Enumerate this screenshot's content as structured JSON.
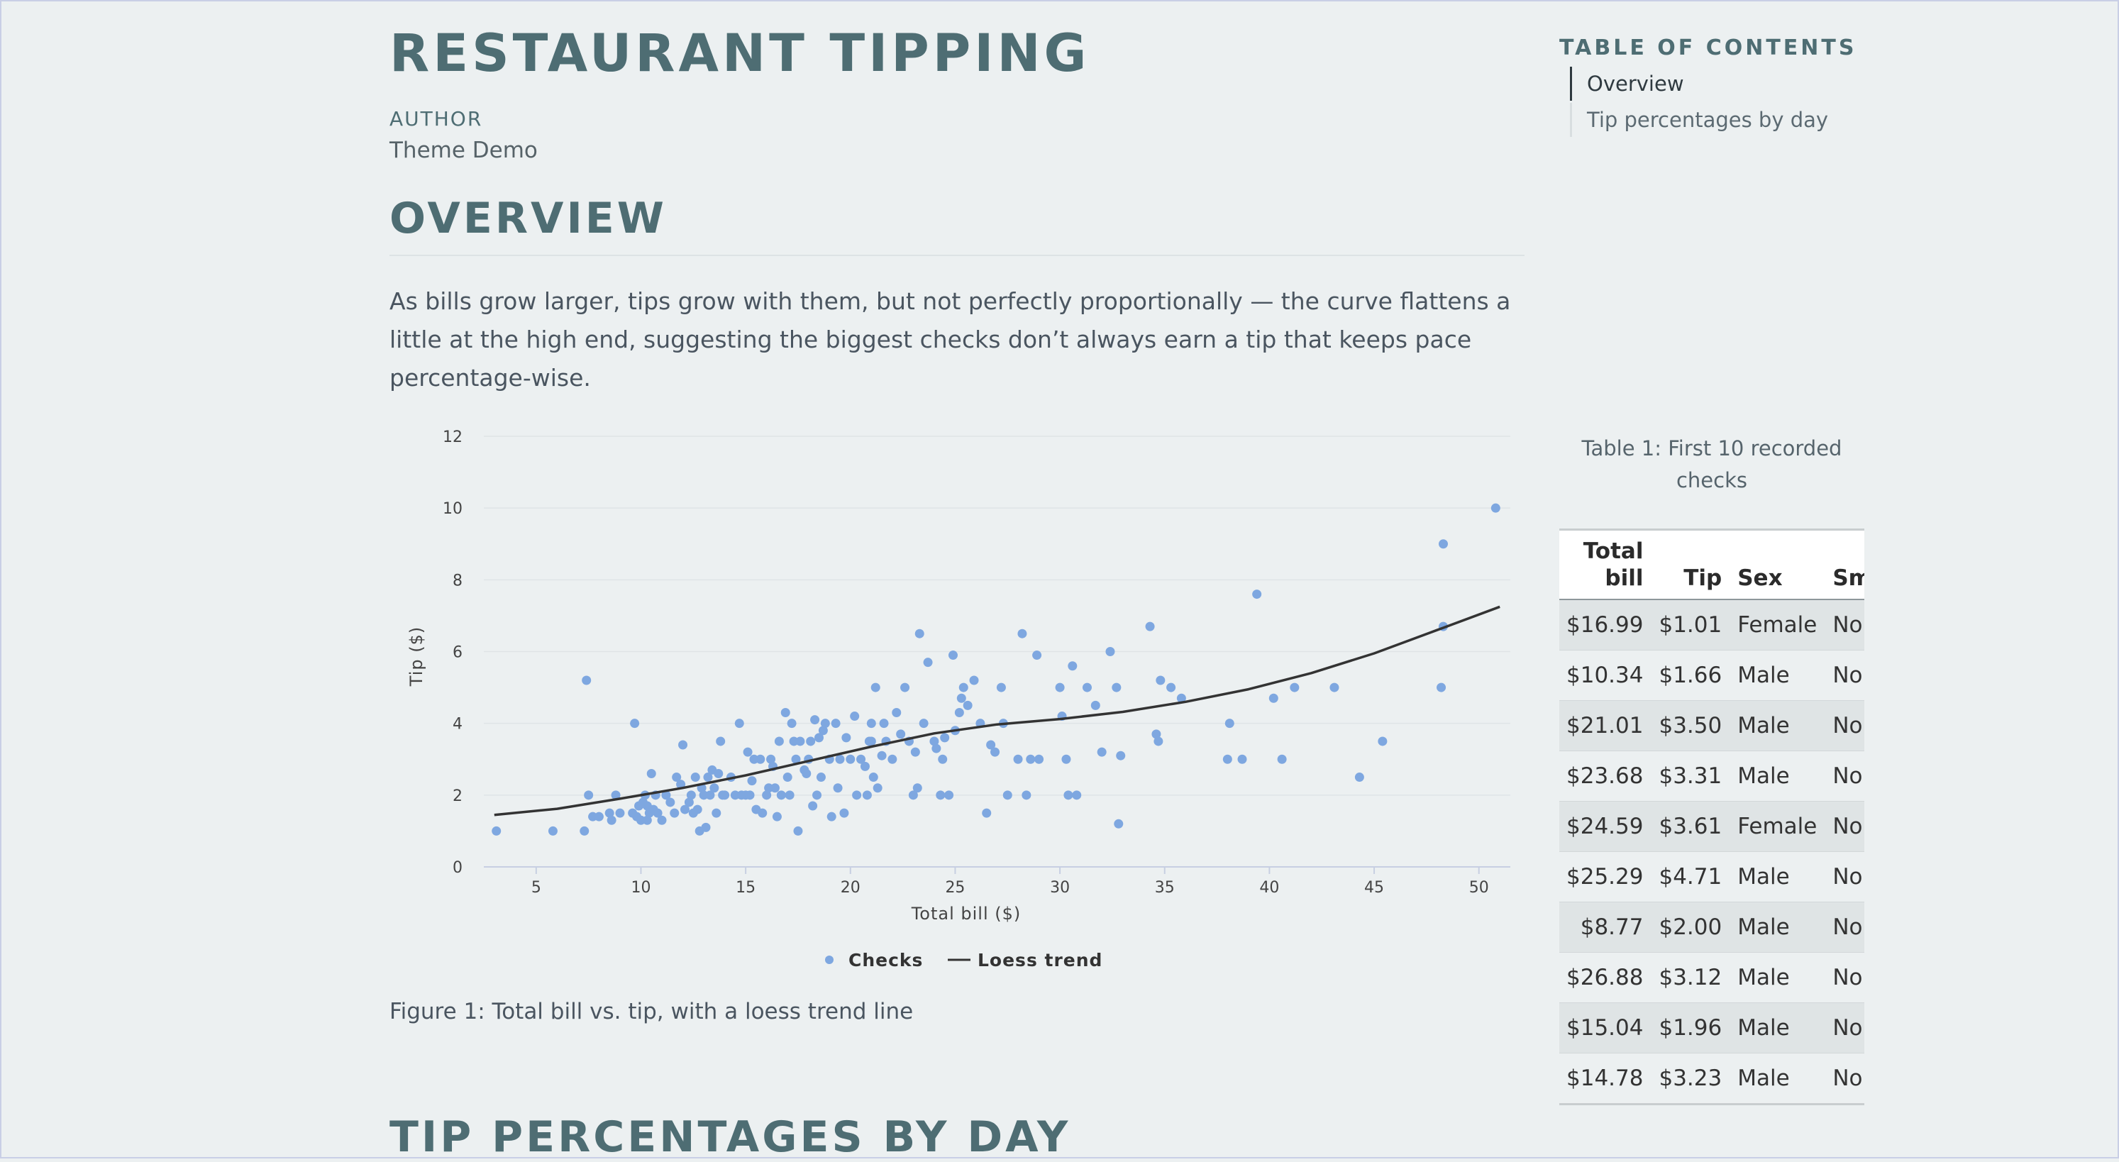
{
  "doc": {
    "title": "RESTAURANT TIPPING",
    "author_label": "AUTHOR",
    "author_name": "Theme Demo"
  },
  "toc": {
    "title": "TABLE OF CONTENTS",
    "items": [
      {
        "label": "Overview",
        "active": true
      },
      {
        "label": "Tip percentages by day",
        "active": false
      }
    ]
  },
  "sections": {
    "overview": {
      "heading": "OVERVIEW",
      "text": "As bills grow larger, tips grow with them, but not perfectly proportionally — the curve flattens a little at the high end, suggesting the biggest checks don’t always earn a tip that keeps pace percentage-wise."
    },
    "tip_by_day": {
      "heading": "TIP PERCENTAGES BY DAY"
    }
  },
  "figure": {
    "caption": "Figure 1: Total bill vs. tip, with a loess trend line"
  },
  "table": {
    "caption": "Table 1: First 10 recorded checks",
    "headers": [
      "Total bill",
      "Tip",
      "Sex",
      "Smoker"
    ],
    "rows": [
      [
        "$16.99",
        "$1.01",
        "Female",
        "No"
      ],
      [
        "$10.34",
        "$1.66",
        "Male",
        "No"
      ],
      [
        "$21.01",
        "$3.50",
        "Male",
        "No"
      ],
      [
        "$23.68",
        "$3.31",
        "Male",
        "No"
      ],
      [
        "$24.59",
        "$3.61",
        "Female",
        "No"
      ],
      [
        "$25.29",
        "$4.71",
        "Male",
        "No"
      ],
      [
        "$8.77",
        "$2.00",
        "Male",
        "No"
      ],
      [
        "$26.88",
        "$3.12",
        "Male",
        "No"
      ],
      [
        "$15.04",
        "$1.96",
        "Male",
        "No"
      ],
      [
        "$14.78",
        "$3.23",
        "Male",
        "No"
      ]
    ]
  },
  "colors": {
    "points": "#7ea7e0",
    "trend": "#333333",
    "heading": "#4e6d73",
    "background": "#ecf0f1"
  },
  "chart_data": {
    "type": "scatter",
    "xlabel": "Total bill ($)",
    "ylabel": "Tip ($)",
    "xlim": [
      2.5,
      51.5
    ],
    "ylim": [
      0,
      12
    ],
    "xticks": [
      5,
      10,
      15,
      20,
      25,
      30,
      35,
      40,
      45,
      50
    ],
    "yticks": [
      0,
      2,
      4,
      6,
      8,
      10,
      12
    ],
    "grid": true,
    "legend_position": "bottom",
    "series": [
      {
        "name": "Checks",
        "kind": "scatter",
        "points": [
          [
            3.1,
            1.0
          ],
          [
            5.8,
            1.0
          ],
          [
            7.3,
            1.0
          ],
          [
            7.4,
            5.2
          ],
          [
            7.5,
            2.0
          ],
          [
            7.7,
            1.4
          ],
          [
            8.0,
            1.4
          ],
          [
            8.5,
            1.5
          ],
          [
            8.6,
            1.3
          ],
          [
            8.8,
            2.0
          ],
          [
            9.0,
            1.5
          ],
          [
            9.6,
            1.5
          ],
          [
            9.7,
            4.0
          ],
          [
            9.8,
            1.4
          ],
          [
            9.9,
            1.7
          ],
          [
            10.0,
            1.3
          ],
          [
            10.1,
            1.8
          ],
          [
            10.2,
            2.0
          ],
          [
            10.3,
            1.7
          ],
          [
            10.3,
            1.3
          ],
          [
            10.4,
            1.5
          ],
          [
            10.5,
            2.6
          ],
          [
            10.6,
            1.6
          ],
          [
            10.7,
            2.0
          ],
          [
            10.8,
            1.5
          ],
          [
            11.0,
            1.3
          ],
          [
            11.2,
            2.0
          ],
          [
            11.4,
            1.8
          ],
          [
            11.6,
            1.5
          ],
          [
            11.7,
            2.5
          ],
          [
            11.9,
            2.3
          ],
          [
            12.0,
            3.4
          ],
          [
            12.1,
            1.6
          ],
          [
            12.3,
            1.8
          ],
          [
            12.4,
            2.0
          ],
          [
            12.5,
            1.5
          ],
          [
            12.6,
            2.5
          ],
          [
            12.7,
            1.6
          ],
          [
            12.8,
            1.0
          ],
          [
            12.9,
            2.2
          ],
          [
            13.0,
            2.0
          ],
          [
            13.1,
            1.1
          ],
          [
            13.2,
            2.5
          ],
          [
            13.3,
            2.0
          ],
          [
            13.4,
            2.7
          ],
          [
            13.5,
            2.2
          ],
          [
            13.6,
            1.5
          ],
          [
            13.7,
            2.6
          ],
          [
            13.8,
            3.5
          ],
          [
            13.9,
            2.0
          ],
          [
            14.0,
            2.0
          ],
          [
            14.3,
            2.5
          ],
          [
            14.5,
            2.0
          ],
          [
            14.7,
            4.0
          ],
          [
            14.8,
            2.0
          ],
          [
            15.0,
            2.0
          ],
          [
            15.1,
            3.2
          ],
          [
            15.2,
            2.0
          ],
          [
            15.3,
            2.4
          ],
          [
            15.4,
            3.0
          ],
          [
            15.5,
            1.6
          ],
          [
            15.7,
            3.0
          ],
          [
            15.8,
            1.5
          ],
          [
            16.0,
            2.0
          ],
          [
            16.1,
            2.2
          ],
          [
            16.2,
            3.0
          ],
          [
            16.3,
            2.8
          ],
          [
            16.4,
            2.2
          ],
          [
            16.5,
            1.4
          ],
          [
            16.6,
            3.5
          ],
          [
            16.7,
            2.0
          ],
          [
            16.9,
            4.3
          ],
          [
            17.0,
            2.5
          ],
          [
            17.1,
            2.0
          ],
          [
            17.2,
            4.0
          ],
          [
            17.3,
            3.5
          ],
          [
            17.4,
            3.0
          ],
          [
            17.5,
            1.0
          ],
          [
            17.6,
            3.5
          ],
          [
            17.8,
            2.7
          ],
          [
            17.9,
            2.6
          ],
          [
            18.0,
            3.0
          ],
          [
            18.1,
            3.5
          ],
          [
            18.2,
            1.7
          ],
          [
            18.3,
            4.1
          ],
          [
            18.4,
            2.0
          ],
          [
            18.5,
            3.6
          ],
          [
            18.6,
            2.5
          ],
          [
            18.7,
            3.8
          ],
          [
            18.8,
            4.0
          ],
          [
            19.0,
            3.0
          ],
          [
            19.1,
            1.4
          ],
          [
            19.3,
            4.0
          ],
          [
            19.4,
            2.2
          ],
          [
            19.5,
            3.0
          ],
          [
            19.7,
            1.5
          ],
          [
            19.8,
            3.6
          ],
          [
            20.0,
            3.0
          ],
          [
            20.2,
            4.2
          ],
          [
            20.3,
            2.0
          ],
          [
            20.5,
            3.0
          ],
          [
            20.7,
            2.8
          ],
          [
            20.8,
            2.0
          ],
          [
            20.9,
            3.5
          ],
          [
            21.0,
            4.0
          ],
          [
            21.0,
            3.5
          ],
          [
            21.1,
            2.5
          ],
          [
            21.2,
            5.0
          ],
          [
            21.3,
            2.2
          ],
          [
            21.5,
            3.1
          ],
          [
            21.6,
            4.0
          ],
          [
            21.7,
            3.5
          ],
          [
            22.0,
            3.0
          ],
          [
            22.2,
            4.3
          ],
          [
            22.4,
            3.7
          ],
          [
            22.6,
            5.0
          ],
          [
            22.8,
            3.5
          ],
          [
            23.0,
            2.0
          ],
          [
            23.1,
            3.2
          ],
          [
            23.2,
            2.2
          ],
          [
            23.3,
            6.5
          ],
          [
            23.5,
            4.0
          ],
          [
            23.7,
            5.7
          ],
          [
            24.0,
            3.5
          ],
          [
            24.1,
            3.3
          ],
          [
            24.3,
            2.0
          ],
          [
            24.4,
            3.0
          ],
          [
            24.5,
            3.6
          ],
          [
            24.7,
            2.0
          ],
          [
            24.9,
            5.9
          ],
          [
            25.0,
            3.8
          ],
          [
            25.2,
            4.3
          ],
          [
            25.3,
            4.7
          ],
          [
            25.4,
            5.0
          ],
          [
            25.6,
            4.5
          ],
          [
            25.9,
            5.2
          ],
          [
            26.2,
            4.0
          ],
          [
            26.5,
            1.5
          ],
          [
            26.7,
            3.4
          ],
          [
            26.9,
            3.2
          ],
          [
            27.2,
            5.0
          ],
          [
            27.3,
            4.0
          ],
          [
            27.5,
            2.0
          ],
          [
            28.0,
            3.0
          ],
          [
            28.2,
            6.5
          ],
          [
            28.4,
            2.0
          ],
          [
            28.6,
            3.0
          ],
          [
            28.9,
            5.9
          ],
          [
            29.0,
            3.0
          ],
          [
            30.0,
            5.0
          ],
          [
            30.1,
            4.2
          ],
          [
            30.3,
            3.0
          ],
          [
            30.4,
            2.0
          ],
          [
            30.6,
            5.6
          ],
          [
            30.8,
            2.0
          ],
          [
            31.3,
            5.0
          ],
          [
            31.7,
            4.5
          ],
          [
            32.0,
            3.2
          ],
          [
            32.4,
            6.0
          ],
          [
            32.7,
            5.0
          ],
          [
            32.8,
            1.2
          ],
          [
            32.9,
            3.1
          ],
          [
            34.3,
            6.7
          ],
          [
            34.6,
            3.7
          ],
          [
            34.7,
            3.5
          ],
          [
            34.8,
            5.2
          ],
          [
            35.3,
            5.0
          ],
          [
            35.8,
            4.7
          ],
          [
            38.0,
            3.0
          ],
          [
            38.1,
            4.0
          ],
          [
            38.7,
            3.0
          ],
          [
            39.4,
            7.6
          ],
          [
            40.2,
            4.7
          ],
          [
            40.6,
            3.0
          ],
          [
            41.2,
            5.0
          ],
          [
            43.1,
            5.0
          ],
          [
            44.3,
            2.5
          ],
          [
            45.4,
            3.5
          ],
          [
            48.2,
            5.0
          ],
          [
            48.3,
            6.7
          ],
          [
            48.3,
            9.0
          ],
          [
            50.8,
            10.0
          ]
        ]
      },
      {
        "name": "Loess trend",
        "kind": "line",
        "points": [
          [
            3,
            1.45
          ],
          [
            6,
            1.62
          ],
          [
            9,
            1.9
          ],
          [
            12,
            2.2
          ],
          [
            15,
            2.55
          ],
          [
            18,
            2.95
          ],
          [
            21,
            3.35
          ],
          [
            24,
            3.72
          ],
          [
            27,
            3.97
          ],
          [
            30,
            4.12
          ],
          [
            33,
            4.32
          ],
          [
            36,
            4.6
          ],
          [
            39,
            4.95
          ],
          [
            42,
            5.4
          ],
          [
            45,
            5.95
          ],
          [
            48,
            6.6
          ],
          [
            51,
            7.25
          ]
        ]
      }
    ]
  }
}
